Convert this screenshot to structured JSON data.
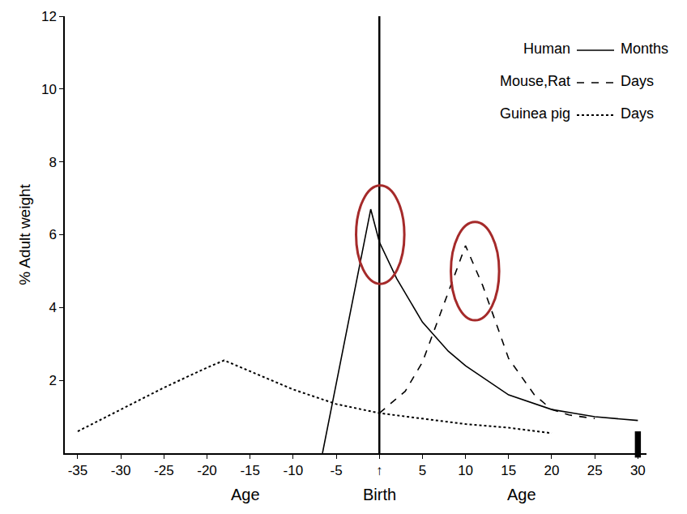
{
  "chart_data": {
    "type": "line",
    "y_label": "% Adult weight",
    "xlim": [
      -36.5,
      31
    ],
    "xticks": [
      -35,
      -30,
      -25,
      -20,
      -15,
      -10,
      -5,
      {
        "value": 0,
        "label": "↑"
      },
      5,
      10,
      15,
      20,
      25,
      30
    ],
    "ylim": [
      0,
      12
    ],
    "yticks": [
      2,
      4,
      6,
      8,
      10,
      12
    ],
    "grid": false,
    "annotations": [
      {
        "text": "Age",
        "x": -15.5
      },
      {
        "text": "Birth",
        "x": 0
      },
      {
        "text": "Age",
        "x": 16.5
      }
    ],
    "series": [
      {
        "name": "Human",
        "unit": "Months",
        "color": "#000000",
        "line_style": "solid",
        "x": [
          -6.6,
          -1,
          0,
          2,
          5,
          8,
          10,
          15,
          20,
          25,
          30
        ],
        "values": [
          0,
          6.7,
          5.8,
          4.8,
          3.6,
          2.8,
          2.4,
          1.6,
          1.2,
          1.0,
          0.9
        ]
      },
      {
        "name": "Mouse,Rat",
        "unit": "Days",
        "color": "#000000",
        "line_style": "dash",
        "x": [
          0,
          3,
          5,
          8,
          10,
          12,
          15,
          18,
          20,
          22,
          25
        ],
        "values": [
          1.1,
          1.7,
          2.5,
          4.4,
          5.7,
          4.6,
          2.6,
          1.6,
          1.2,
          1.05,
          0.95
        ]
      },
      {
        "name": "Guinea pig",
        "unit": "Days",
        "color": "#000000",
        "line_style": "dot",
        "x": [
          -35,
          -30,
          -25,
          -20,
          -18,
          -15,
          -10,
          -5,
          0,
          5,
          10,
          15,
          20
        ],
        "values": [
          0.6,
          1.2,
          1.8,
          2.35,
          2.55,
          2.25,
          1.75,
          1.35,
          1.1,
          0.95,
          0.8,
          0.7,
          0.55
        ]
      }
    ]
  }
}
